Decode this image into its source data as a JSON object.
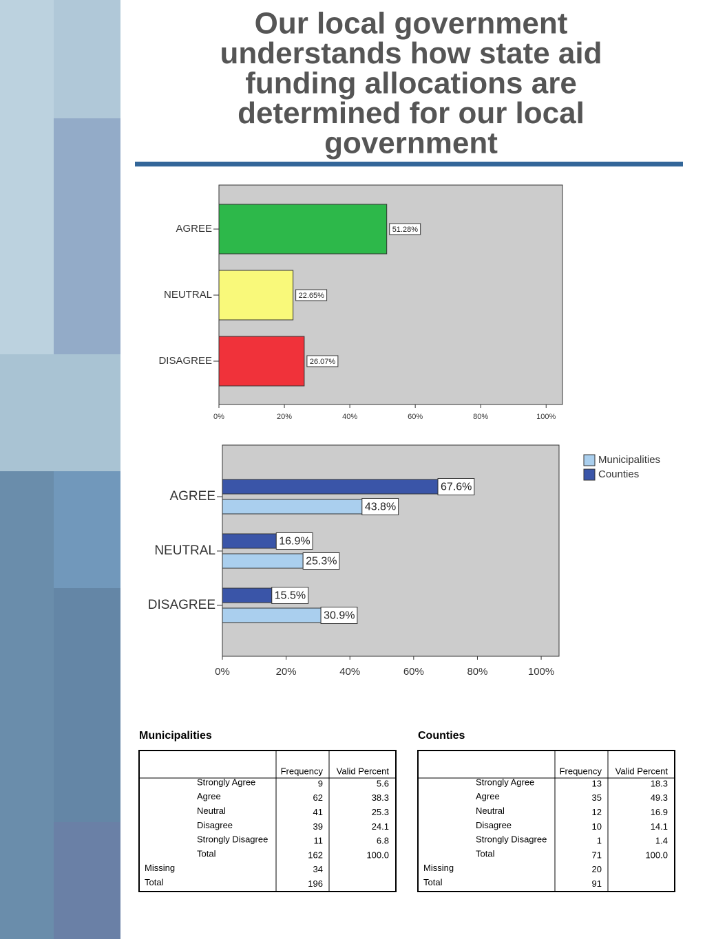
{
  "title": [
    "Our local government",
    "understands how state aid",
    "funding allocations are",
    "determined for our local",
    "government"
  ],
  "chart_data": [
    {
      "type": "bar",
      "orientation": "horizontal",
      "categories": [
        "AGREE",
        "NEUTRAL",
        "DISAGREE"
      ],
      "values": [
        51.28,
        22.65,
        26.07
      ],
      "value_labels": [
        "51.28%",
        "22.65%",
        "26.07%"
      ],
      "colors": [
        "#2db84a",
        "#f9f97a",
        "#f0323a"
      ],
      "xlim": [
        0,
        105
      ],
      "xticks": [
        {
          "value": 0,
          "label": "0%"
        },
        {
          "value": 20,
          "label": "20%"
        },
        {
          "value": 40,
          "label": "40%"
        },
        {
          "value": 60,
          "label": "60%"
        },
        {
          "value": 80,
          "label": "80%"
        },
        {
          "value": 100,
          "label": "100%"
        }
      ]
    },
    {
      "type": "grouped-bar",
      "orientation": "horizontal",
      "categories": [
        "AGREE",
        "NEUTRAL",
        "DISAGREE"
      ],
      "series": [
        {
          "name": "Municipalities",
          "color": "#aacfee",
          "values": [
            43.8,
            25.3,
            30.9
          ],
          "value_labels": [
            "43.8%",
            "25.3%",
            "30.9%"
          ]
        },
        {
          "name": "Counties",
          "color": "#3a55a8",
          "values": [
            67.6,
            16.9,
            15.5
          ],
          "value_labels": [
            "67.6%",
            "16.9%",
            "15.5%"
          ]
        }
      ],
      "xlim": [
        0,
        105.6
      ],
      "xticks": [
        {
          "value": 0,
          "label": "0%"
        },
        {
          "value": 20,
          "label": "20%"
        },
        {
          "value": 40,
          "label": "40%"
        },
        {
          "value": 60,
          "label": "60%"
        },
        {
          "value": 80,
          "label": "80%"
        },
        {
          "value": 100,
          "label": "100%"
        }
      ],
      "legend": "top-right"
    }
  ],
  "tables": [
    {
      "title": "Municipalities",
      "columns": [
        "Frequency",
        "Valid Percent"
      ],
      "rows": [
        {
          "label": "Strongly Agree",
          "cells": [
            "9",
            "5.6"
          ]
        },
        {
          "label": "Agree",
          "cells": [
            "62",
            "38.3"
          ]
        },
        {
          "label": "Neutral",
          "cells": [
            "41",
            "25.3"
          ]
        },
        {
          "label": "Disagree",
          "cells": [
            "39",
            "24.1"
          ]
        },
        {
          "label": "Strongly Disagree",
          "cells": [
            "11",
            "6.8"
          ]
        },
        {
          "label": "Total",
          "cells": [
            "162",
            "100.0"
          ]
        },
        {
          "group": "Missing",
          "cells": [
            "34"
          ]
        },
        {
          "group": "Total",
          "cells": [
            "196"
          ]
        }
      ]
    },
    {
      "title": "Counties",
      "columns": [
        "Frequency",
        "Valid Percent"
      ],
      "rows": [
        {
          "label": "Strongly Agree",
          "cells": [
            "13",
            "18.3"
          ]
        },
        {
          "label": "Agree",
          "cells": [
            "35",
            "49.3"
          ]
        },
        {
          "label": "Neutral",
          "cells": [
            "12",
            "16.9"
          ]
        },
        {
          "label": "Disagree",
          "cells": [
            "10",
            "14.1"
          ]
        },
        {
          "label": "Strongly Disagree",
          "cells": [
            "1",
            "1.4"
          ]
        },
        {
          "label": "Total",
          "cells": [
            "71",
            "100.0"
          ]
        },
        {
          "group": "Missing",
          "cells": [
            "20"
          ]
        },
        {
          "group": "Total",
          "cells": [
            "91"
          ]
        }
      ]
    }
  ]
}
